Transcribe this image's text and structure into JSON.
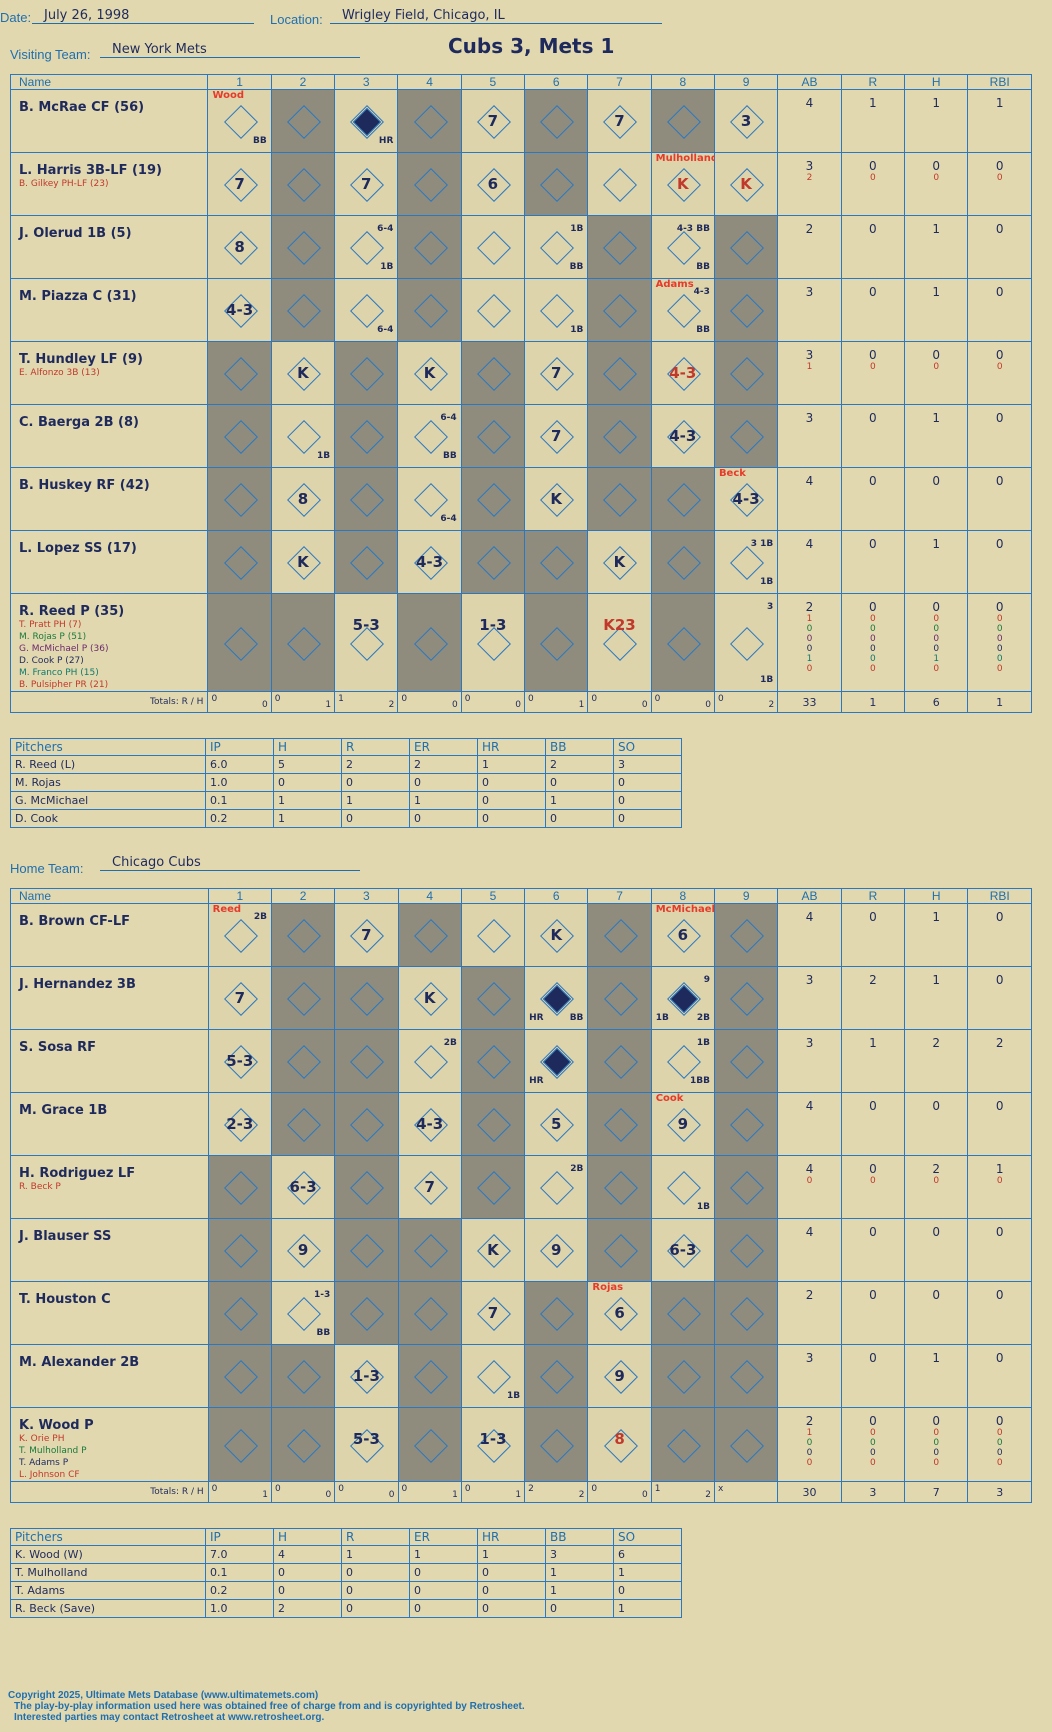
{
  "header": {
    "date_label": "Date:",
    "date": "July 26, 1998",
    "location_label": "Location:",
    "location": "Wrigley Field, Chicago, IL",
    "title": "Cubs 3, Mets 1"
  },
  "visiting": {
    "label": "Visiting Team:",
    "team": "New York Mets",
    "players": [
      {
        "name": "B. McRae CF (56)",
        "subs": [],
        "ab": "4",
        "r": "1",
        "h": "1",
        "rbi": "1"
      },
      {
        "name": "L. Harris 3B-LF (19)",
        "subs": [
          {
            "n": "B. Gilkey PH-LF (23)",
            "c": "red"
          }
        ],
        "ab": "3",
        "r": "0",
        "h": "0",
        "rbi": "0",
        "sub_stats": [
          [
            "2",
            "0",
            "0",
            "0"
          ]
        ]
      },
      {
        "name": "J. Olerud 1B (5)",
        "subs": [],
        "ab": "2",
        "r": "0",
        "h": "1",
        "rbi": "0"
      },
      {
        "name": "M. Piazza C (31)",
        "subs": [],
        "ab": "3",
        "r": "0",
        "h": "1",
        "rbi": "0"
      },
      {
        "name": "T. Hundley LF (9)",
        "subs": [
          {
            "n": "E. Alfonzo 3B (13)",
            "c": "red"
          }
        ],
        "ab": "3",
        "r": "0",
        "h": "0",
        "rbi": "0",
        "sub_stats": [
          [
            "1",
            "0",
            "0",
            "0"
          ]
        ]
      },
      {
        "name": "C. Baerga 2B (8)",
        "subs": [],
        "ab": "3",
        "r": "0",
        "h": "1",
        "rbi": "0"
      },
      {
        "name": "B. Huskey RF (42)",
        "subs": [],
        "ab": "4",
        "r": "0",
        "h": "0",
        "rbi": "0"
      },
      {
        "name": "L. Lopez SS (17)",
        "subs": [],
        "ab": "4",
        "r": "0",
        "h": "1",
        "rbi": "0"
      },
      {
        "name": "R. Reed P (35)",
        "subs": [
          {
            "n": "T. Pratt PH (7)",
            "c": "red"
          },
          {
            "n": "M. Rojas P (51)",
            "c": "grn"
          },
          {
            "n": "G. McMichael P (36)",
            "c": "pur"
          },
          {
            "n": "D. Cook P (27)",
            "c": "nav"
          },
          {
            "n": "M. Franco PH (15)",
            "c": "teal"
          },
          {
            "n": "B. Pulsipher PR (21)",
            "c": "red"
          }
        ],
        "ab": "2",
        "r": "0",
        "h": "0",
        "rbi": "0",
        "sub_stats": [
          [
            "1",
            "0",
            "0",
            "0"
          ],
          [
            "0",
            "0",
            "0",
            "0"
          ],
          [
            "0",
            "0",
            "0",
            "0"
          ],
          [
            "0",
            "0",
            "0",
            "0"
          ],
          [
            "1",
            "0",
            "1",
            "0"
          ],
          [
            "0",
            "0",
            "0",
            "0"
          ]
        ]
      }
    ],
    "innings_rh": [
      [
        "0",
        "0"
      ],
      [
        "0",
        "1"
      ],
      [
        "1",
        "2"
      ],
      [
        "0",
        "0"
      ],
      [
        "0",
        "0"
      ],
      [
        "0",
        "1"
      ],
      [
        "0",
        "0"
      ],
      [
        "0",
        "0"
      ],
      [
        "0",
        "2"
      ]
    ],
    "totals": {
      "label": "Totals:",
      "r_label": "R",
      "h_label": "H",
      "ab": "33",
      "r": "1",
      "h": "6",
      "rbi": "1"
    },
    "pitchers": [
      [
        "R. Reed (L)",
        "6.0",
        "5",
        "2",
        "2",
        "1",
        "2",
        "3"
      ],
      [
        "M. Rojas",
        "1.0",
        "0",
        "0",
        "0",
        "0",
        "0",
        "0"
      ],
      [
        "G. McMichael",
        "0.1",
        "1",
        "1",
        "1",
        "0",
        "1",
        "0"
      ],
      [
        "D. Cook",
        "0.2",
        "1",
        "0",
        "0",
        "0",
        "0",
        "0"
      ]
    ]
  },
  "home": {
    "label": "Home Team:",
    "team": "Chicago Cubs",
    "players": [
      {
        "name": "B. Brown CF-LF",
        "subs": [],
        "ab": "4",
        "r": "0",
        "h": "1",
        "rbi": "0"
      },
      {
        "name": "J. Hernandez 3B",
        "subs": [],
        "ab": "3",
        "r": "2",
        "h": "1",
        "rbi": "0"
      },
      {
        "name": "S. Sosa RF",
        "subs": [],
        "ab": "3",
        "r": "1",
        "h": "2",
        "rbi": "2"
      },
      {
        "name": "M. Grace 1B",
        "subs": [],
        "ab": "4",
        "r": "0",
        "h": "0",
        "rbi": "0"
      },
      {
        "name": "H. Rodriguez LF",
        "subs": [
          {
            "n": "R. Beck P",
            "c": "red"
          }
        ],
        "ab": "4",
        "r": "0",
        "h": "2",
        "rbi": "1",
        "sub_stats": [
          [
            "0",
            "0",
            "0",
            "0"
          ]
        ]
      },
      {
        "name": "J. Blauser SS",
        "subs": [],
        "ab": "4",
        "r": "0",
        "h": "0",
        "rbi": "0"
      },
      {
        "name": "T. Houston C",
        "subs": [],
        "ab": "2",
        "r": "0",
        "h": "0",
        "rbi": "0"
      },
      {
        "name": "M. Alexander 2B",
        "subs": [],
        "ab": "3",
        "r": "0",
        "h": "1",
        "rbi": "0"
      },
      {
        "name": "K. Wood P",
        "subs": [
          {
            "n": "K. Orie PH",
            "c": "red"
          },
          {
            "n": "T. Mulholland P",
            "c": "grn"
          },
          {
            "n": "T. Adams P",
            "c": "nav"
          },
          {
            "n": "L. Johnson CF",
            "c": "red"
          }
        ],
        "ab": "2",
        "r": "0",
        "h": "0",
        "rbi": "0",
        "sub_stats": [
          [
            "1",
            "0",
            "0",
            "0"
          ],
          [
            "0",
            "0",
            "0",
            "0"
          ],
          [
            "0",
            "0",
            "0",
            "0"
          ],
          [
            "0",
            "0",
            "0",
            "0"
          ]
        ]
      }
    ],
    "innings_rh": [
      [
        "0",
        "1"
      ],
      [
        "0",
        "0"
      ],
      [
        "0",
        "0"
      ],
      [
        "0",
        "1"
      ],
      [
        "0",
        "1"
      ],
      [
        "2",
        "2"
      ],
      [
        "0",
        "0"
      ],
      [
        "1",
        "2"
      ],
      [
        "x",
        ""
      ]
    ],
    "totals": {
      "label": "Totals:",
      "r_label": "R",
      "h_label": "H",
      "ab": "30",
      "r": "3",
      "h": "7",
      "rbi": "3"
    },
    "pitchers": [
      [
        "K. Wood (W)",
        "7.0",
        "4",
        "1",
        "1",
        "1",
        "3",
        "6"
      ],
      [
        "T. Mulholland",
        "0.1",
        "0",
        "0",
        "0",
        "0",
        "1",
        "1"
      ],
      [
        "T. Adams",
        "0.2",
        "0",
        "0",
        "0",
        "0",
        "1",
        "0"
      ],
      [
        "R. Beck (Save)",
        "1.0",
        "2",
        "0",
        "0",
        "0",
        "0",
        "1"
      ]
    ]
  },
  "columns": {
    "name": "Name",
    "innings": [
      "1",
      "2",
      "3",
      "4",
      "5",
      "6",
      "7",
      "8",
      "9"
    ],
    "ab": "AB",
    "r": "R",
    "h": "H",
    "rbi": "RBI"
  },
  "pitch_columns": [
    "Pitchers",
    "IP",
    "H",
    "R",
    "ER",
    "HR",
    "BB",
    "SO"
  ],
  "visit_cells": [
    [
      {
        "t": "",
        "w": "Wood",
        "s": "BB"
      },
      {
        "d": 1
      },
      {
        "t": "",
        "s": "HR",
        "hr": 1
      },
      {
        "d": 1
      },
      {
        "t": "7"
      },
      {
        "d": 1
      },
      {
        "t": "7"
      },
      {
        "d": 1
      },
      {
        "t": "3"
      }
    ],
    [
      {
        "t": "7"
      },
      {
        "d": 1
      },
      {
        "t": "7"
      },
      {
        "d": 1
      },
      {
        "t": "6"
      },
      {
        "d": 1
      },
      {
        "t": ""
      },
      {
        "t": "K",
        "w": "Mulholland",
        "red": 1
      },
      {
        "t": "K",
        "red": 1
      }
    ],
    [
      {
        "t": "8"
      },
      {
        "d": 1
      },
      {
        "t": "",
        "s": "1B",
        "n": "6-4"
      },
      {
        "d": 1
      },
      {
        "t": ""
      },
      {
        "t": "",
        "s": "BB",
        "n": "1B"
      },
      {
        "d": 1
      },
      {
        "t": "",
        "s": "BB",
        "n": "4-3 BB"
      },
      {
        "d": 1
      }
    ],
    [
      {
        "t": "4-3"
      },
      {
        "d": 1
      },
      {
        "t": "",
        "s": "6-4"
      },
      {
        "d": 1
      },
      {
        "t": ""
      },
      {
        "t": "",
        "s": "1B"
      },
      {
        "d": 1
      },
      {
        "t": "",
        "s": "BB",
        "n": "4-3",
        "w": "Adams"
      },
      {
        "d": 1
      }
    ],
    [
      {
        "d": 1
      },
      {
        "t": "K"
      },
      {
        "d": 1
      },
      {
        "t": "K"
      },
      {
        "d": 1
      },
      {
        "t": "7"
      },
      {
        "d": 1
      },
      {
        "t": "4-3",
        "red": 1
      },
      {
        "d": 1
      }
    ],
    [
      {
        "d": 1
      },
      {
        "t": "",
        "s": "1B"
      },
      {
        "d": 1
      },
      {
        "t": "",
        "s": "BB",
        "n": "6-4"
      },
      {
        "d": 1
      },
      {
        "t": "7"
      },
      {
        "d": 1
      },
      {
        "t": "4-3"
      },
      {
        "d": 1
      }
    ],
    [
      {
        "d": 1
      },
      {
        "t": "8"
      },
      {
        "d": 1
      },
      {
        "t": "",
        "s": "6-4"
      },
      {
        "d": 1
      },
      {
        "t": "K"
      },
      {
        "d": 1
      },
      {
        "d": 1
      },
      {
        "t": "4-3",
        "w": "Beck"
      }
    ],
    [
      {
        "d": 1
      },
      {
        "t": "K"
      },
      {
        "d": 1
      },
      {
        "t": "4-3"
      },
      {
        "d": 1
      },
      {
        "d": 1
      },
      {
        "t": "K"
      },
      {
        "d": 1
      },
      {
        "t": "",
        "s": "1B",
        "n": "3 1B"
      }
    ],
    [
      {
        "d": 1
      },
      {
        "d": 1
      },
      {
        "t": "5-3"
      },
      {
        "d": 1
      },
      {
        "t": "1-3"
      },
      {
        "d": 1
      },
      {
        "t": "K23",
        "red": 1
      },
      {
        "d": 1
      },
      {
        "t": "",
        "s": "1B",
        "n": "3"
      }
    ]
  ],
  "home_cells": [
    [
      {
        "t": "",
        "w": "Reed",
        "n": "2B"
      },
      {
        "d": 1
      },
      {
        "t": "7"
      },
      {
        "d": 1
      },
      {
        "t": ""
      },
      {
        "t": "K"
      },
      {
        "d": 1
      },
      {
        "t": "6",
        "w": "McMichael"
      },
      {
        "d": 1
      }
    ],
    [
      {
        "t": "7"
      },
      {
        "d": 1
      },
      {
        "d": 1
      },
      {
        "t": "K"
      },
      {
        "d": 1
      },
      {
        "t": "",
        "s": "BB",
        "hr": 1,
        "sl": "HR"
      },
      {
        "d": 1
      },
      {
        "t": "",
        "s": "2B",
        "hr": 1,
        "sl": "1B",
        "n": "9"
      },
      {
        "d": 1
      }
    ],
    [
      {
        "t": "5-3"
      },
      {
        "d": 1
      },
      {
        "d": 1
      },
      {
        "t": "",
        "n": "2B"
      },
      {
        "d": 1
      },
      {
        "t": "",
        "hr": 1,
        "sl": "HR"
      },
      {
        "d": 1
      },
      {
        "t": "",
        "s": "1BB",
        "n": "1B"
      },
      {
        "d": 1
      }
    ],
    [
      {
        "t": "2-3"
      },
      {
        "d": 1
      },
      {
        "d": 1
      },
      {
        "t": "4-3"
      },
      {
        "d": 1
      },
      {
        "t": "5"
      },
      {
        "d": 1
      },
      {
        "t": "9",
        "w": "Cook"
      },
      {
        "d": 1
      }
    ],
    [
      {
        "d": 1
      },
      {
        "t": "6-3"
      },
      {
        "d": 1
      },
      {
        "t": "7"
      },
      {
        "d": 1
      },
      {
        "t": "",
        "n": "2B"
      },
      {
        "d": 1
      },
      {
        "t": "",
        "s": "1B"
      },
      {
        "d": 1
      }
    ],
    [
      {
        "d": 1
      },
      {
        "t": "9"
      },
      {
        "d": 1
      },
      {
        "d": 1
      },
      {
        "t": "K"
      },
      {
        "t": "9"
      },
      {
        "d": 1
      },
      {
        "t": "6-3"
      },
      {
        "d": 1
      }
    ],
    [
      {
        "d": 1
      },
      {
        "t": "",
        "s": "BB",
        "n": "1-3"
      },
      {
        "d": 1
      },
      {
        "d": 1
      },
      {
        "t": "7"
      },
      {
        "d": 1
      },
      {
        "t": "6",
        "w": "Rojas"
      },
      {
        "d": 1
      },
      {
        "d": 1
      }
    ],
    [
      {
        "d": 1
      },
      {
        "d": 1
      },
      {
        "t": "1-3"
      },
      {
        "d": 1
      },
      {
        "t": "",
        "s": "1B"
      },
      {
        "d": 1
      },
      {
        "t": "9"
      },
      {
        "d": 1
      },
      {
        "d": 1
      }
    ],
    [
      {
        "d": 1
      },
      {
        "d": 1
      },
      {
        "t": "5-3"
      },
      {
        "d": 1
      },
      {
        "t": "1-3"
      },
      {
        "d": 1
      },
      {
        "t": "8",
        "red": 1
      },
      {
        "d": 1
      },
      {
        "d": 1
      }
    ]
  ],
  "footer": {
    "line1": "Copyright 2025, Ultimate Mets Database (www.ultimatemets.com)",
    "line2": "The play-by-play information used here was obtained free of charge from and is copyrighted by Retrosheet.",
    "line3": "Interested parties may contact Retrosheet at www.retrosheet.org."
  }
}
